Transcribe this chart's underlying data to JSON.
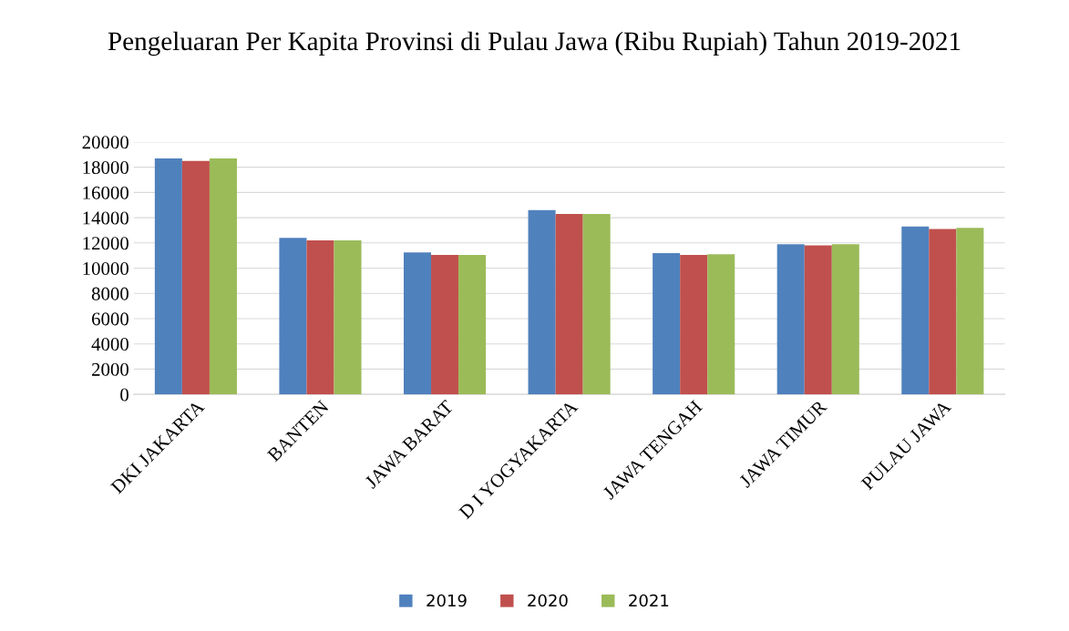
{
  "chart_data": {
    "type": "bar",
    "title": "Pengeluaran Per Kapita Provinsi di Pulau Jawa (Ribu Rupiah) Tahun 2019-2021",
    "categories": [
      "DKI JAKARTA",
      "BANTEN",
      "JAWA BARAT",
      "D I YOGYAKARTA",
      "JAWA TENGAH",
      "JAWA TIMUR",
      "PULAU JAWA"
    ],
    "series": [
      {
        "name": "2019",
        "color": "#4f81bd",
        "values": [
          18700,
          12400,
          11250,
          14600,
          11200,
          11900,
          13300
        ]
      },
      {
        "name": "2020",
        "color": "#c0504d",
        "values": [
          18500,
          12200,
          11050,
          14300,
          11050,
          11800,
          13100
        ]
      },
      {
        "name": "2021",
        "color": "#9bbb59",
        "values": [
          18700,
          12200,
          11050,
          14300,
          11100,
          11900,
          13200
        ]
      }
    ],
    "ylim": [
      0,
      20000
    ],
    "yticks": [
      0,
      2000,
      4000,
      6000,
      8000,
      10000,
      12000,
      14000,
      16000,
      18000,
      20000
    ],
    "grid": "y",
    "legend": "bottom"
  }
}
